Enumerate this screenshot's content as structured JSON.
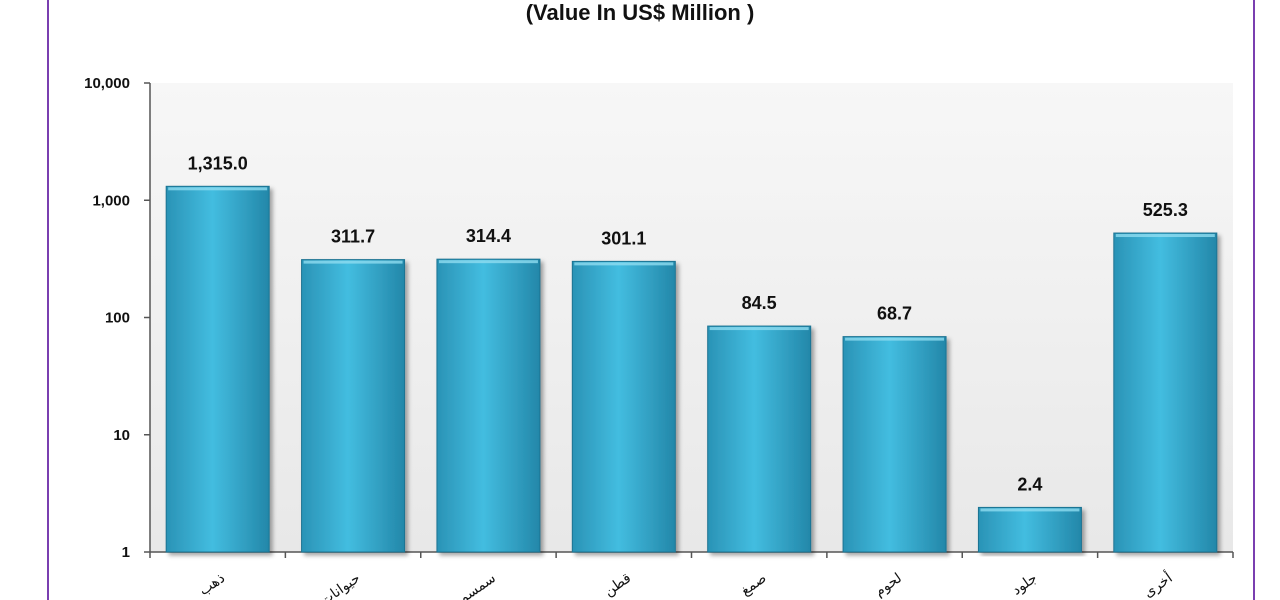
{
  "chart_data": {
    "type": "bar",
    "title": "(Value In US$ Million )",
    "y_scale": "log",
    "ylim": [
      1,
      10000
    ],
    "y_ticks": [
      "1",
      "10",
      "100",
      "1,000",
      "10,000"
    ],
    "grid": false,
    "categories": [
      "ذهب",
      "حيوانات",
      "سمسم",
      "قطن",
      "صمغ",
      "لحوم",
      "جلود",
      "أخرى"
    ],
    "values": [
      1315.0,
      311.7,
      314.4,
      301.1,
      84.5,
      68.7,
      2.4,
      525.3
    ],
    "value_labels": [
      "1,315.0",
      "311.7",
      "314.4",
      "301.1",
      "84.5",
      "68.7",
      "2.4",
      "525.3"
    ],
    "colors": {
      "bar": "#3cb4d4",
      "bar_dark": "#1f7f9f",
      "plot_bg_top": "#f6f6f6",
      "plot_bg_bottom": "#e9e9e9",
      "frame": "#7a3fb0"
    }
  }
}
